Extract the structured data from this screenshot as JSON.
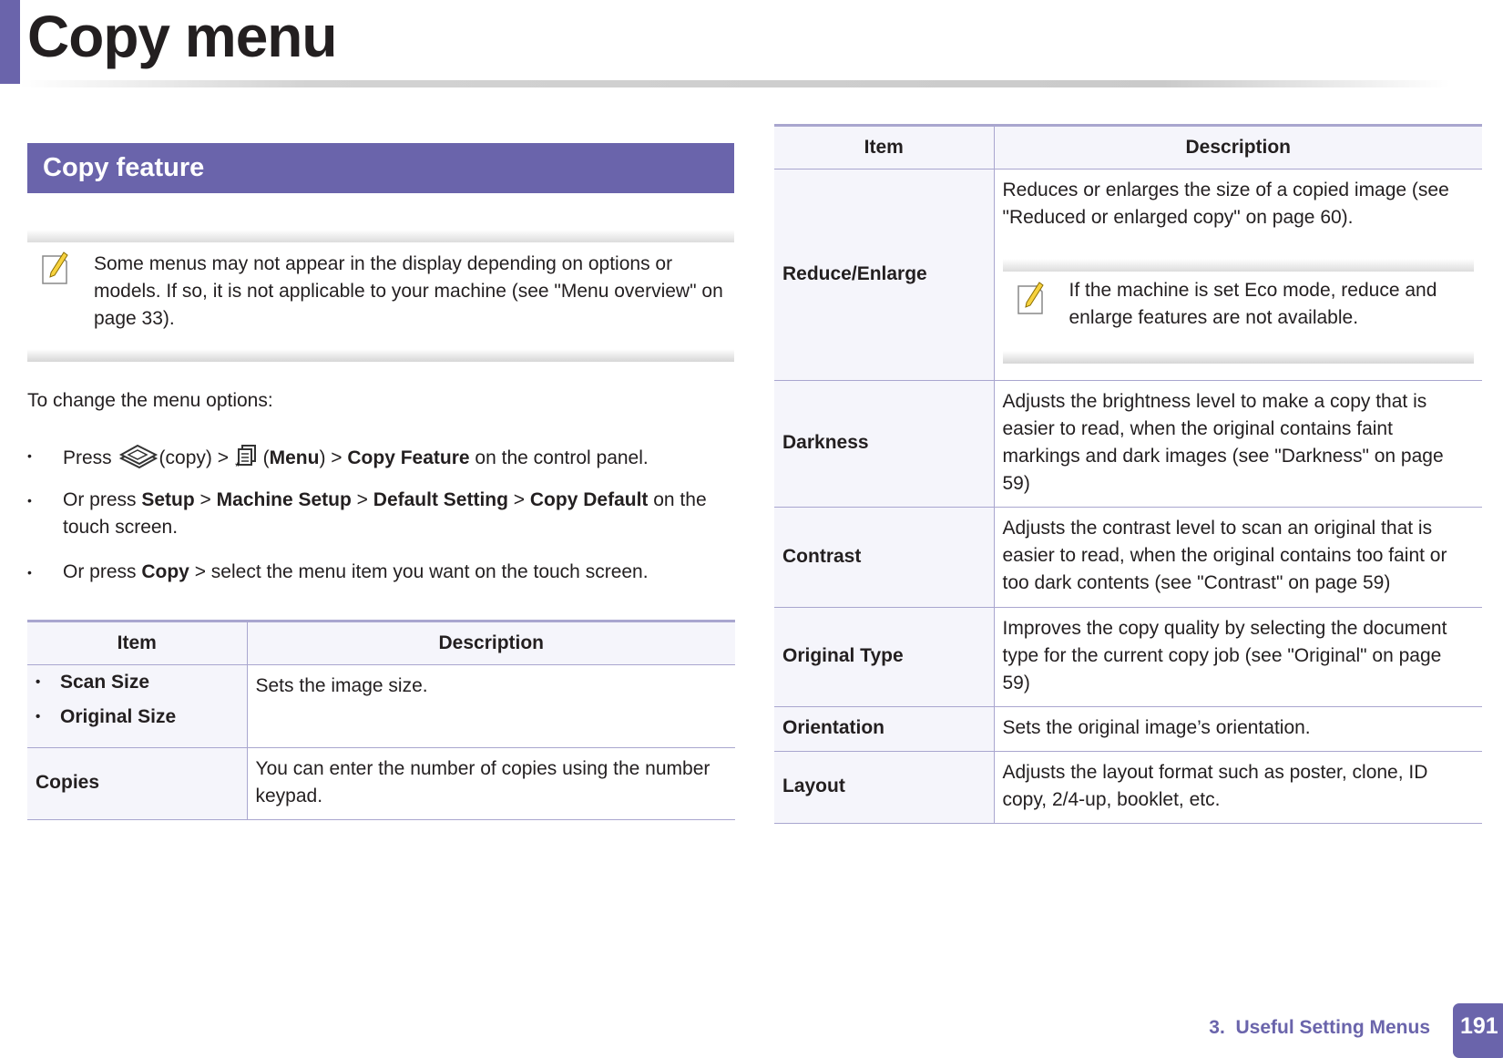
{
  "header": {
    "title": "Copy menu"
  },
  "section": {
    "title": "Copy feature"
  },
  "note1": {
    "icon": "note-pencil-icon",
    "text": "Some menus may not appear in the display depending on options or models. If so, it is not applicable to your machine (see \"Menu overview\" on page 33)."
  },
  "intro": "To change the menu options:",
  "bullets": {
    "b1": {
      "press": "Press ",
      "copy_icon": "copy-icon",
      "copy": "(copy) > ",
      "menu_icon": "menu-icon",
      "open": " (",
      "menu": "Menu",
      "mid": ") > ",
      "feature": "Copy Feature",
      "end": " on the control panel."
    },
    "b2": {
      "pre": "Or press ",
      "setup": "Setup",
      "sep1": " > ",
      "machine": "Machine Setup",
      "sep2": " > ",
      "default": "Default Setting",
      "sep3": " > ",
      "copydef": "Copy Default",
      "end": " on the touch screen."
    },
    "b3": {
      "pre": "Or press ",
      "copy": "Copy",
      "end": " > select the menu item you want on the touch screen."
    }
  },
  "table_left": {
    "headers": [
      "Item",
      "Description"
    ],
    "rows": [
      {
        "items": [
          "Scan Size",
          "Original Size"
        ],
        "desc": "Sets the image size."
      },
      {
        "item": "Copies",
        "desc": "You can enter the number of copies using the number keypad."
      }
    ]
  },
  "table_right": {
    "headers": [
      "Item",
      "Description"
    ],
    "rows": [
      {
        "item": "Reduce/Enlarge",
        "desc": "Reduces or enlarges the size of a copied image (see \"Reduced or enlarged copy\" on page 60).",
        "note": "If the machine is set Eco mode, reduce and enlarge features are not available."
      },
      {
        "item": "Darkness",
        "desc": "Adjusts the brightness level to make a copy that is easier to read, when the original contains faint markings and dark images (see \"Darkness\" on page 59)"
      },
      {
        "item": "Contrast",
        "desc": "Adjusts the contrast level to scan an original that is easier to read, when the original contains too faint or too dark contents (see \"Contrast\" on page 59)"
      },
      {
        "item": "Original Type",
        "desc": "Improves the copy quality by selecting the document type for the current copy job (see \"Original\" on page 59)"
      },
      {
        "item": "Orientation",
        "desc": "Sets the original image’s orientation."
      },
      {
        "item": "Layout",
        "desc": "Adjusts the layout format such as poster, clone, ID copy, 2/4-up, booklet, etc."
      }
    ]
  },
  "footer": {
    "chapter": "3.  Useful Setting Menus",
    "page": "191"
  },
  "colors": {
    "accent": "#6a64ab",
    "table_border": "#a9a6cf",
    "header_bg": "#f5f5fb"
  }
}
